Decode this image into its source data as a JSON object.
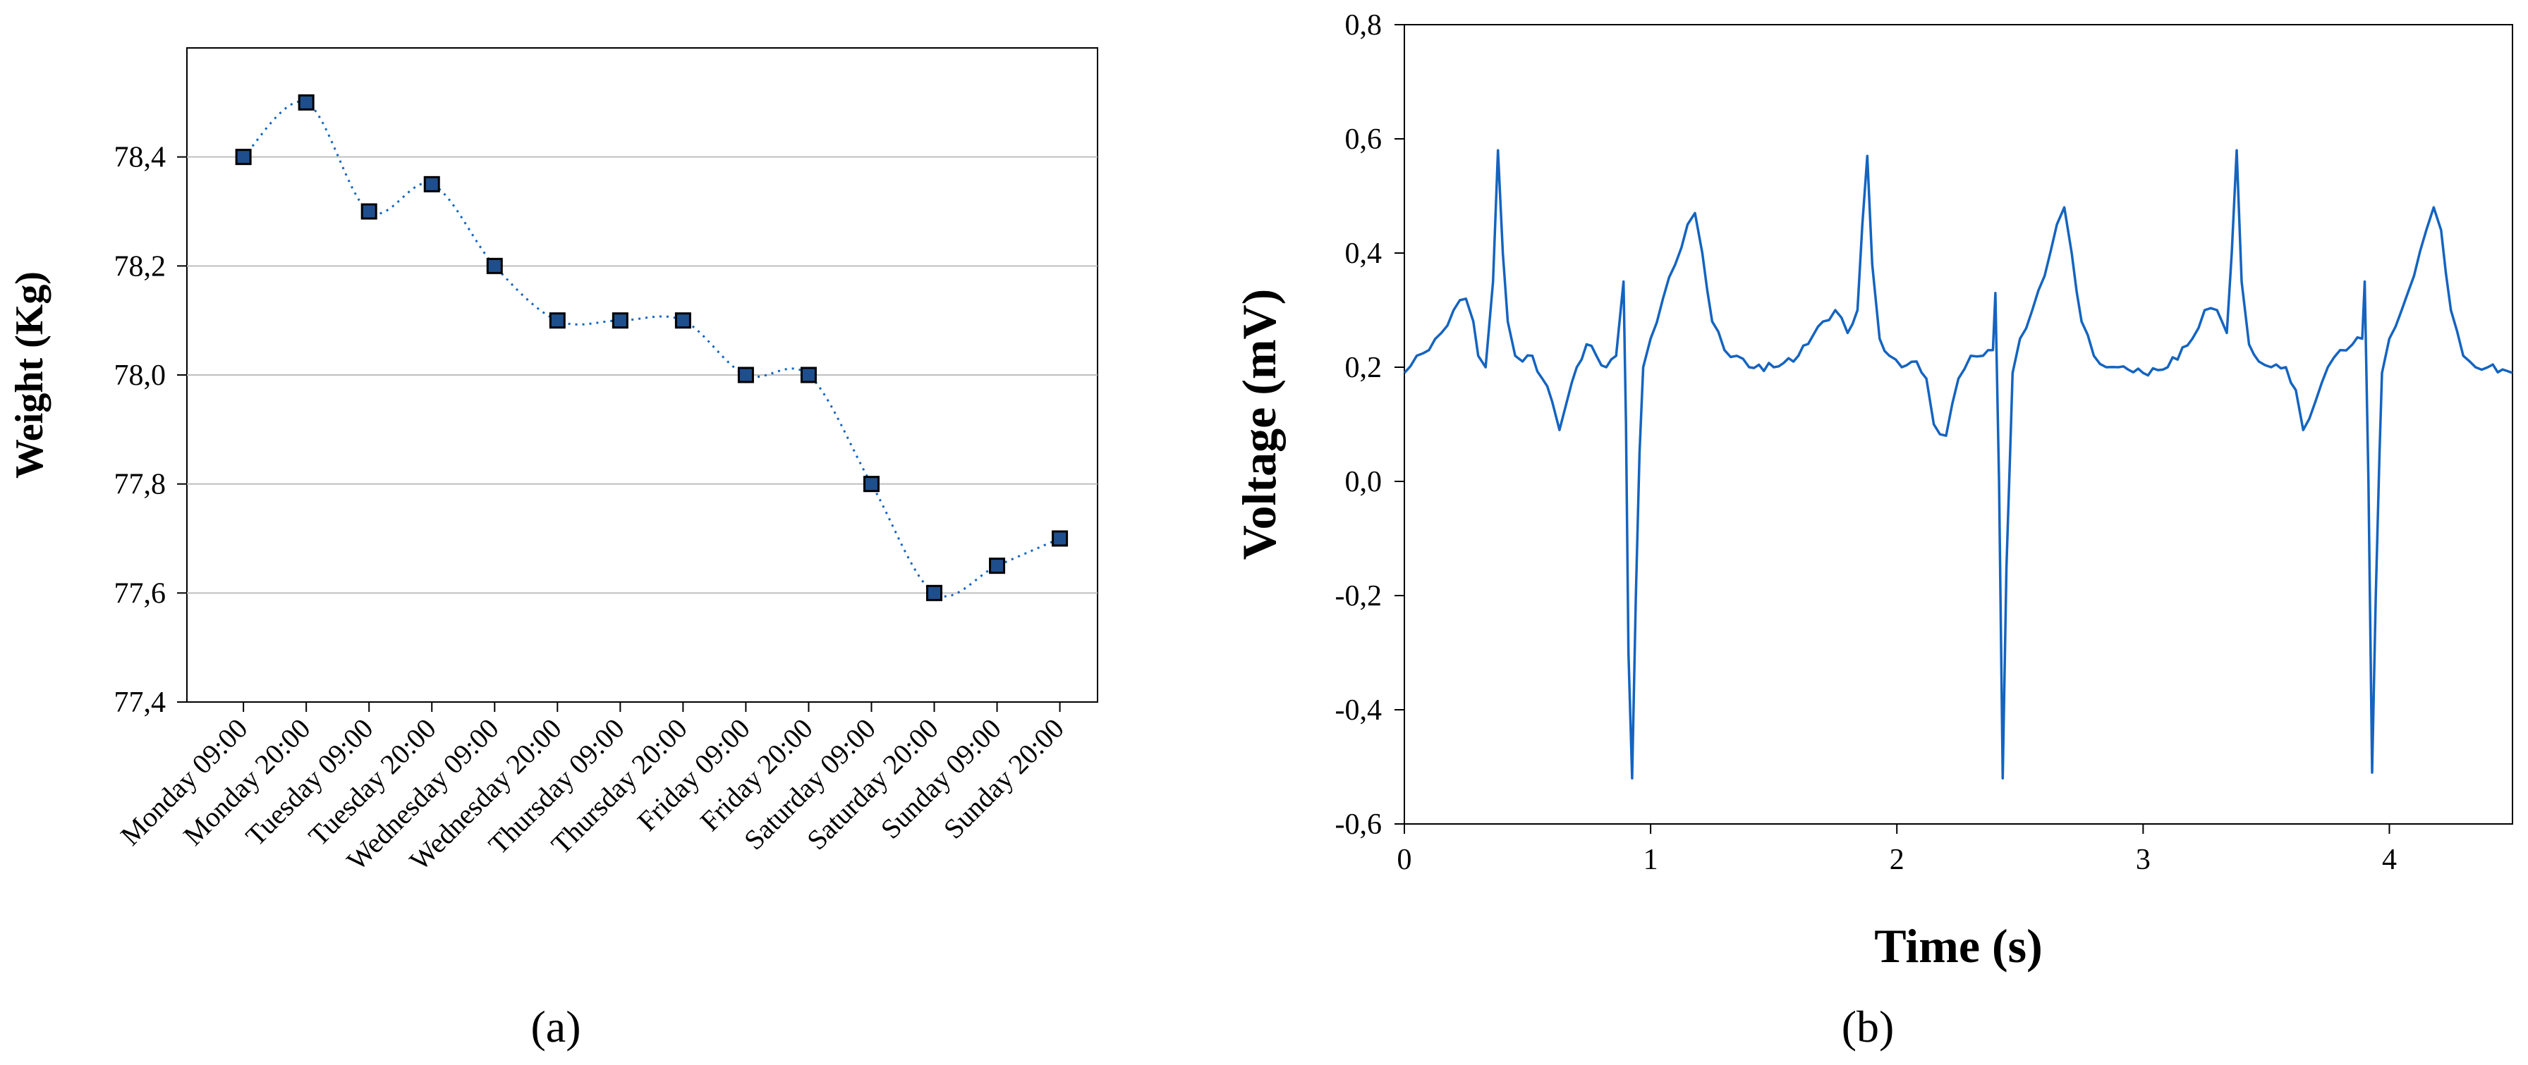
{
  "panel_labels": {
    "a": "(a)",
    "b": "(b)"
  },
  "colors": {
    "line_blue": "#1464c0",
    "marker_fill": "#1f4e8c",
    "marker_edge": "#000000",
    "grid": "#bfbfbf",
    "axis": "#000000"
  },
  "chart_data": [
    {
      "type": "line",
      "title": "",
      "xlabel": "",
      "ylabel": "Weight (Kg)",
      "categories": [
        "Monday 09:00",
        "Monday 20:00",
        "Tuesday 09:00",
        "Tuesday 20:00",
        "Wednesday 09:00",
        "Wednesday 20:00",
        "Thursday 09:00",
        "Thursday 20:00",
        "Friday 09:00",
        "Friday 20:00",
        "Saturday 09:00",
        "Saturday 20:00",
        "Sunday 09:00",
        "Sunday 20:00"
      ],
      "values": [
        78.4,
        78.5,
        78.3,
        78.35,
        78.2,
        78.1,
        78.1,
        78.1,
        78.0,
        78.0,
        77.8,
        77.6,
        77.65,
        77.7
      ],
      "ylim": [
        77.4,
        78.6
      ],
      "yticks": [
        "77,4",
        "77,6",
        "77,8",
        "78,0",
        "78,2",
        "78,4"
      ],
      "ytick_values": [
        77.4,
        77.6,
        77.8,
        78.0,
        78.2,
        78.4
      ],
      "grid": true,
      "line_style": "dotted smoothed line with square markers"
    },
    {
      "type": "line",
      "title": "",
      "xlabel": "Time (s)",
      "ylabel": "Voltage (mV)",
      "xlim": [
        0,
        4.5
      ],
      "ylim": [
        -0.6,
        0.8
      ],
      "xticks": [
        "0",
        "1",
        "2",
        "3",
        "4"
      ],
      "xtick_values": [
        0,
        1,
        2,
        3,
        4
      ],
      "yticks": [
        "-0,6",
        "-0,4",
        "-0,2",
        "0,0",
        "0,2",
        "0,4",
        "0,6",
        "0,8"
      ],
      "ytick_values": [
        -0.6,
        -0.4,
        -0.2,
        0.0,
        0.2,
        0.4,
        0.6,
        0.8
      ],
      "grid": false,
      "series": [
        {
          "x": [
            0,
            0.05,
            0.1,
            0.15,
            0.2,
            0.25,
            0.28,
            0.3,
            0.33,
            0.36,
            0.38,
            0.4,
            0.42,
            0.45,
            0.48,
            0.52,
            0.56,
            0.6,
            0.63,
            0.66,
            0.7,
            0.74,
            0.78,
            0.82,
            0.86,
            0.89,
            0.9,
            0.91,
            0.925,
            0.94,
            0.955,
            0.97,
            1.0,
            1.05,
            1.1,
            1.15,
            1.18,
            1.21,
            1.25,
            1.3,
            1.35,
            1.4,
            1.5,
            1.6,
            1.7,
            1.75,
            1.8,
            1.84,
            1.86,
            1.88,
            1.9,
            1.93,
            1.97,
            2.02,
            2.08,
            2.12,
            2.15,
            2.2,
            2.25,
            2.3,
            2.35,
            2.39,
            2.4,
            2.415,
            2.43,
            2.445,
            2.46,
            2.47,
            2.5,
            2.55,
            2.6,
            2.65,
            2.68,
            2.71,
            2.75,
            2.8,
            2.85,
            2.9,
            3.0,
            3.1,
            3.2,
            3.25,
            3.3,
            3.34,
            3.36,
            3.38,
            3.4,
            3.43,
            3.47,
            3.52,
            3.58,
            3.62,
            3.65,
            3.7,
            3.75,
            3.8,
            3.85,
            3.89,
            3.9,
            3.915,
            3.93,
            3.945,
            3.96,
            3.97,
            4.0,
            4.05,
            4.1,
            4.15,
            4.18,
            4.21,
            4.25,
            4.3,
            4.35,
            4.4,
            4.5
          ],
          "y": [
            0.19,
            0.22,
            0.23,
            0.26,
            0.3,
            0.32,
            0.28,
            0.22,
            0.2,
            0.35,
            0.58,
            0.4,
            0.28,
            0.22,
            0.21,
            0.22,
            0.18,
            0.14,
            0.09,
            0.14,
            0.2,
            0.24,
            0.22,
            0.2,
            0.22,
            0.35,
            0.1,
            -0.3,
            -0.52,
            -0.2,
            0.05,
            0.2,
            0.25,
            0.32,
            0.38,
            0.45,
            0.47,
            0.4,
            0.28,
            0.23,
            0.22,
            0.2,
            0.2,
            0.22,
            0.28,
            0.3,
            0.26,
            0.3,
            0.45,
            0.57,
            0.38,
            0.25,
            0.22,
            0.2,
            0.21,
            0.18,
            0.1,
            0.08,
            0.18,
            0.22,
            0.22,
            0.23,
            0.33,
            0.0,
            -0.52,
            -0.15,
            0.05,
            0.19,
            0.25,
            0.3,
            0.36,
            0.45,
            0.48,
            0.4,
            0.28,
            0.22,
            0.2,
            0.2,
            0.19,
            0.2,
            0.25,
            0.3,
            0.3,
            0.26,
            0.4,
            0.58,
            0.35,
            0.24,
            0.21,
            0.2,
            0.2,
            0.16,
            0.09,
            0.14,
            0.2,
            0.23,
            0.24,
            0.25,
            0.35,
            0.0,
            -0.51,
            -0.2,
            0.05,
            0.19,
            0.25,
            0.3,
            0.36,
            0.44,
            0.48,
            0.44,
            0.3,
            0.22,
            0.2,
            0.2,
            0.19
          ]
        }
      ]
    }
  ]
}
